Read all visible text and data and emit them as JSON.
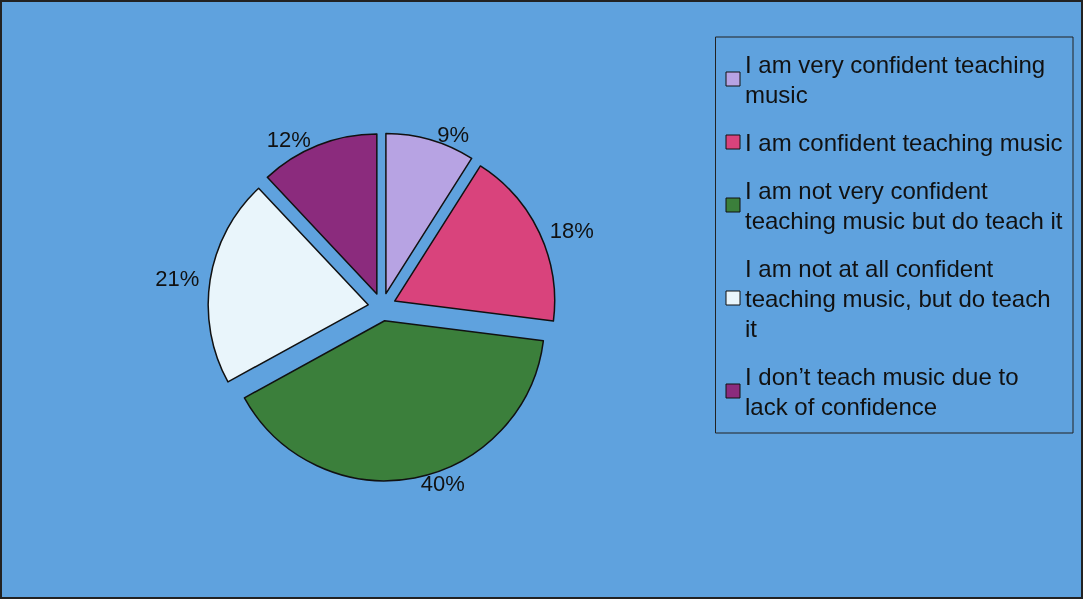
{
  "chart_data": {
    "type": "pie",
    "categories": [
      "I am very confident teaching music",
      "I am confident teaching music",
      "I am not very confident teaching music but do teach it",
      "I am not at all confident teaching music, but do teach it",
      "I don’t teach music due to lack of confidence"
    ],
    "values": [
      9,
      18,
      40,
      21,
      12
    ],
    "value_labels": [
      "9%",
      "18%",
      "40%",
      "21%",
      "12%"
    ],
    "colors": [
      "#b7a3e3",
      "#d9437c",
      "#3b7f3b",
      "#e9f5fb",
      "#8b2b7d"
    ],
    "legend": "right"
  }
}
